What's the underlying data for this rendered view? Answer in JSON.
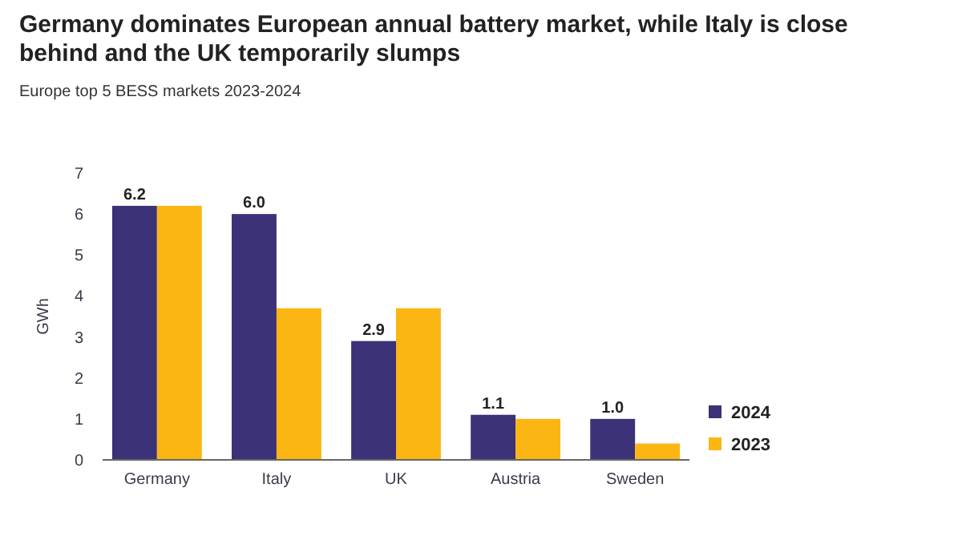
{
  "chart_data": {
    "type": "bar",
    "title": "Germany dominates European annual battery market, while Italy is close behind and the UK temporarily slumps",
    "subtitle": "Europe top 5 BESS markets 2023-2024",
    "ylabel": "GWh",
    "categories": [
      "Germany",
      "Italy",
      "UK",
      "Austria",
      "Sweden"
    ],
    "series": [
      {
        "name": "2024",
        "color": "#3b3278",
        "values": [
          6.2,
          6.0,
          2.9,
          1.1,
          1.0
        ],
        "value_labels": [
          "6.2",
          "6.0",
          "2.9",
          "1.1",
          "1.0"
        ]
      },
      {
        "name": "2023",
        "color": "#fbb614",
        "values": [
          6.2,
          3.7,
          3.7,
          1.0,
          0.4
        ]
      }
    ],
    "ylim": [
      0,
      7
    ],
    "yticks": [
      0,
      1,
      2,
      3,
      4,
      5,
      6,
      7
    ],
    "legend": "bottom right"
  }
}
